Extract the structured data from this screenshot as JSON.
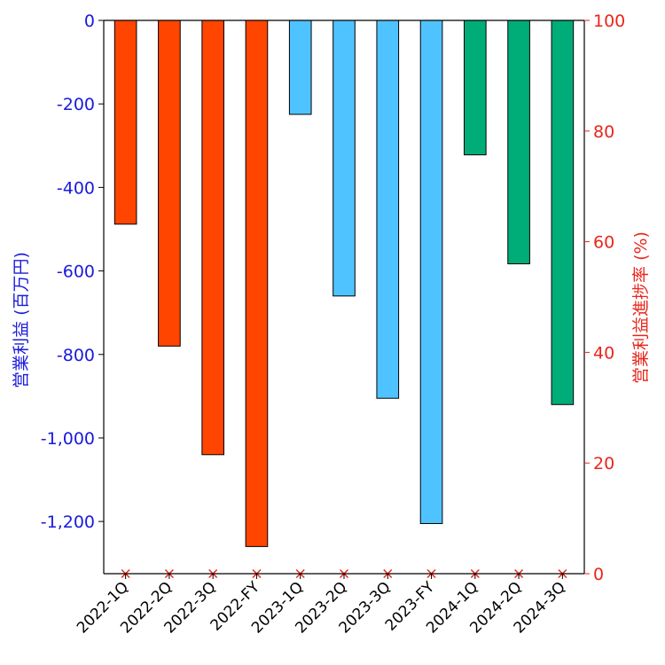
{
  "chart_data": {
    "type": "bar",
    "categories": [
      "2022-1Q",
      "2022-2Q",
      "2022-3Q",
      "2022-FY",
      "2023-1Q",
      "2023-2Q",
      "2023-3Q",
      "2023-FY",
      "2024-1Q",
      "2024-2Q",
      "2024-3Q"
    ],
    "values": [
      -488,
      -780,
      -1040,
      -1260,
      -225,
      -660,
      -905,
      -1205,
      -322,
      -583,
      -920
    ],
    "progress_rate": [
      0,
      0,
      0,
      0,
      0,
      0,
      0,
      0,
      0,
      0,
      0
    ],
    "bar_colors": [
      "#ff4500",
      "#ff4500",
      "#ff4500",
      "#ff4500",
      "#4fc3ff",
      "#4fc3ff",
      "#4fc3ff",
      "#4fc3ff",
      "#00ac78",
      "#00ac78",
      "#00ac78"
    ],
    "ylabel": "営業利益 (百万円)",
    "y2label": "営業利益進捗率 (%)",
    "ylim": [
      -1325,
      0
    ],
    "y2lim": [
      0,
      100
    ],
    "yticks": [
      0,
      -200,
      -400,
      -600,
      -800,
      -1000,
      -1200
    ],
    "ytick_labels": [
      "0",
      "-200",
      "-400",
      "-600",
      "-800",
      "-1,000",
      "-1,200"
    ],
    "y2ticks": [
      0,
      20,
      40,
      60,
      80,
      100
    ],
    "y2tick_labels": [
      "0",
      "20",
      "40",
      "60",
      "80",
      "100"
    ],
    "left_axis_color": "#1a1adc",
    "right_axis_color": "#e8261b",
    "marker": "x",
    "grid": false,
    "legend": "none"
  }
}
